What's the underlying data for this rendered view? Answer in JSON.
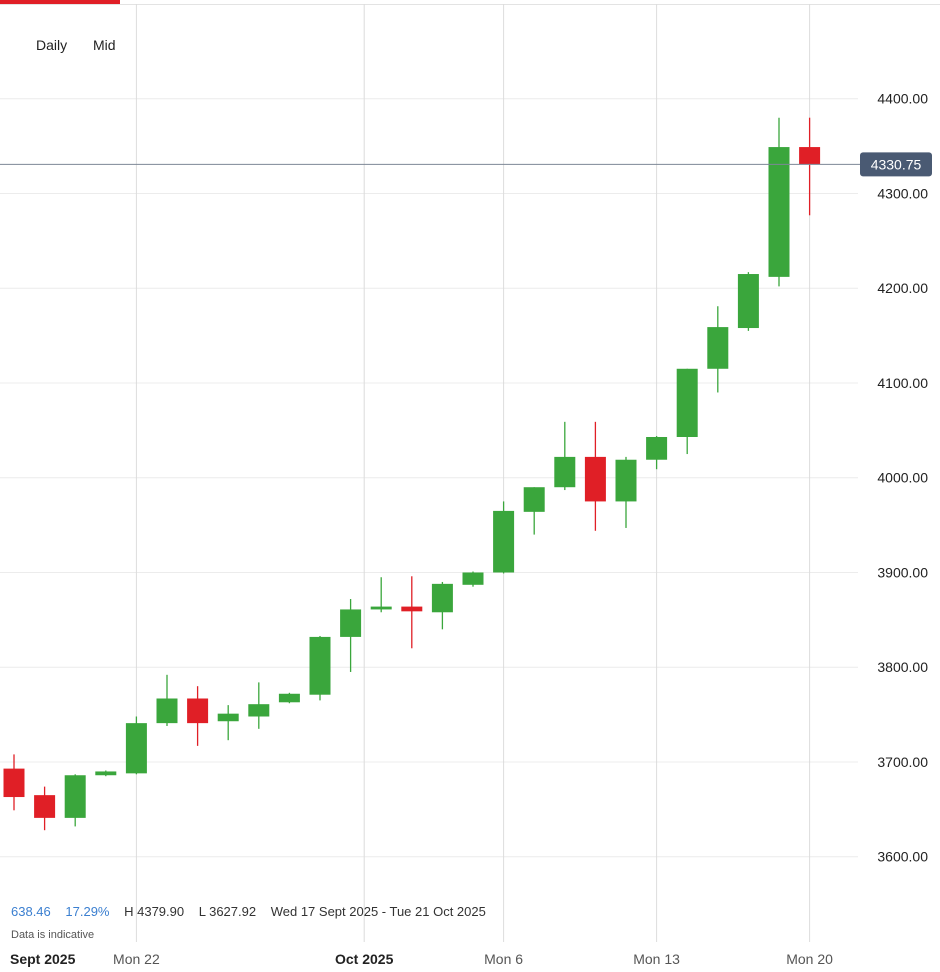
{
  "toolbar": {
    "interval": "Daily",
    "price_type": "Mid"
  },
  "stats": {
    "change": "638.46",
    "change_pct": "17.29%",
    "high": "H 4379.90",
    "low": "L 3627.92",
    "range": "Wed 17 Sept 2025 - Tue 21 Oct 2025"
  },
  "note": "Data is indicative",
  "colors": {
    "up": "#3aa63c",
    "down": "#e01f26",
    "accent": "#e01f26",
    "price_label_bg": "#4a5a73"
  },
  "chart_data": {
    "type": "candlestick",
    "ylim": [
      3510,
      4500
    ],
    "y_ticks": [
      3600,
      3700,
      3800,
      3900,
      4000,
      4100,
      4200,
      4300,
      4400
    ],
    "y_tick_labels": [
      "3600.00",
      "3700.00",
      "3800.00",
      "3900.00",
      "4000.00",
      "4100.00",
      "4200.00",
      "4300.00",
      "4400.00"
    ],
    "x_labels": [
      {
        "label": "Sept 2025",
        "index": 0
      },
      {
        "label": "Mon 22",
        "index": 4
      },
      {
        "label": "Oct 2025",
        "index": 12
      },
      {
        "label": "Mon 6",
        "index": 16
      },
      {
        "label": "Mon 13",
        "index": 21
      },
      {
        "label": "Mon 20",
        "index": 26
      }
    ],
    "grid_indices": [
      4,
      12,
      16,
      21,
      26
    ],
    "current_price": 4330.75,
    "current_price_label": "4330.75",
    "candles": [
      {
        "o": 3693,
        "h": 3708,
        "l": 3649,
        "c": 3663
      },
      {
        "o": 3665,
        "h": 3674,
        "l": 3628,
        "c": 3641
      },
      {
        "o": 3641,
        "h": 3687,
        "l": 3632,
        "c": 3686
      },
      {
        "o": 3686,
        "h": 3691,
        "l": 3685,
        "c": 3690
      },
      {
        "o": 3688,
        "h": 3748,
        "l": 3687,
        "c": 3741
      },
      {
        "o": 3741,
        "h": 3792,
        "l": 3738,
        "c": 3767
      },
      {
        "o": 3767,
        "h": 3780,
        "l": 3717,
        "c": 3741
      },
      {
        "o": 3743,
        "h": 3760,
        "l": 3723,
        "c": 3751
      },
      {
        "o": 3748,
        "h": 3784,
        "l": 3735,
        "c": 3761
      },
      {
        "o": 3763,
        "h": 3773,
        "l": 3762,
        "c": 3772
      },
      {
        "o": 3771,
        "h": 3833,
        "l": 3765,
        "c": 3832
      },
      {
        "o": 3832,
        "h": 3872,
        "l": 3795,
        "c": 3861
      },
      {
        "o": 3861,
        "h": 3895,
        "l": 3858,
        "c": 3864
      },
      {
        "o": 3864,
        "h": 3896,
        "l": 3820,
        "c": 3859
      },
      {
        "o": 3858,
        "h": 3890,
        "l": 3840,
        "c": 3888
      },
      {
        "o": 3887,
        "h": 3901,
        "l": 3885,
        "c": 3900
      },
      {
        "o": 3900,
        "h": 3975,
        "l": 3899,
        "c": 3965
      },
      {
        "o": 3964,
        "h": 3990,
        "l": 3940,
        "c": 3990
      },
      {
        "o": 3990,
        "h": 4059,
        "l": 3987,
        "c": 4022
      },
      {
        "o": 4022,
        "h": 4059,
        "l": 3944,
        "c": 3975
      },
      {
        "o": 3975,
        "h": 4022,
        "l": 3947,
        "c": 4019
      },
      {
        "o": 4019,
        "h": 4044,
        "l": 4009,
        "c": 4043
      },
      {
        "o": 4043,
        "h": 4115,
        "l": 4025,
        "c": 4115
      },
      {
        "o": 4115,
        "h": 4181,
        "l": 4090,
        "c": 4159
      },
      {
        "o": 4158,
        "h": 4217,
        "l": 4155,
        "c": 4215
      },
      {
        "o": 4212,
        "h": 4380,
        "l": 4202,
        "c": 4349
      },
      {
        "o": 4349,
        "h": 4380,
        "l": 4277,
        "c": 4331
      }
    ]
  }
}
